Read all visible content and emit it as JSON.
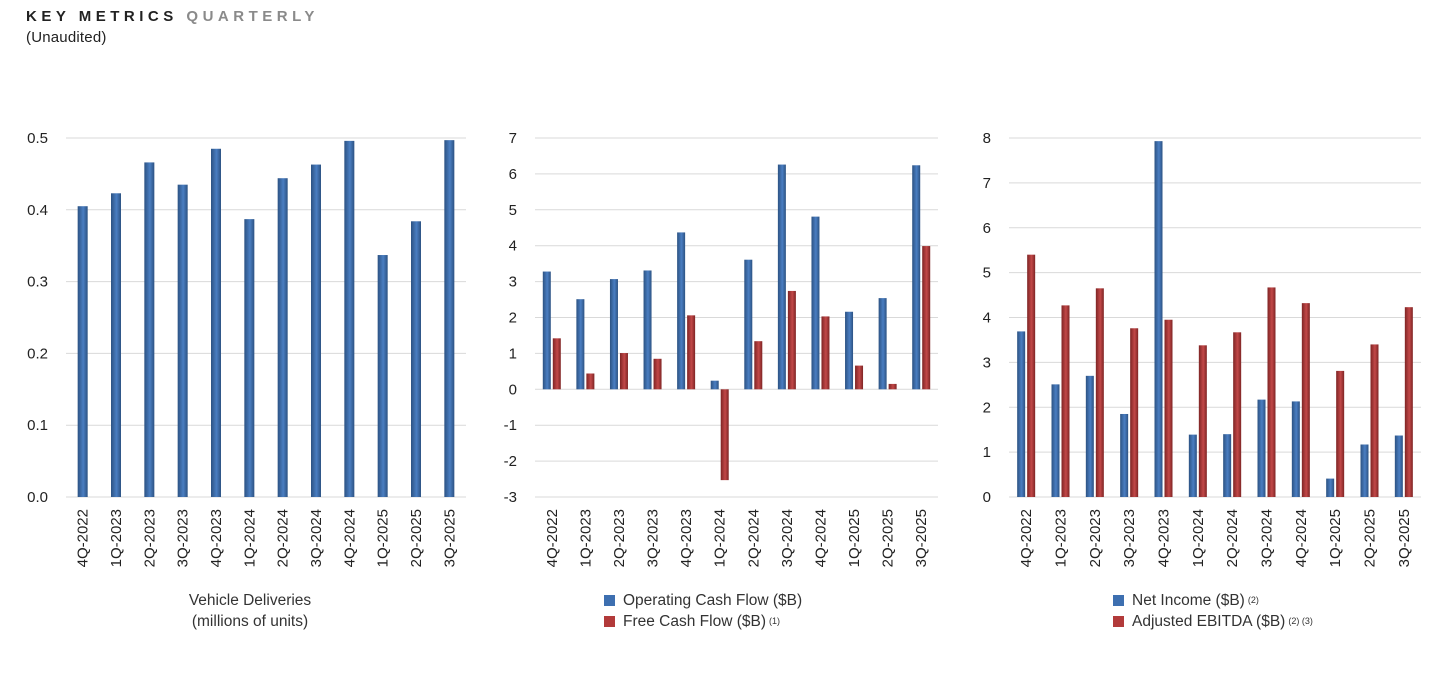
{
  "header": {
    "title_main": "KEY METRICS",
    "title_accent": "QUARTERLY",
    "subtitle": "(Unaudited)"
  },
  "colors": {
    "blue": "#3d6fb0",
    "blue_dark": "#2c5282",
    "red": "#b23a3a",
    "red_dark": "#7e2424",
    "grid": "#d9d9d9"
  },
  "legends": {
    "deliveries": {
      "line1": "Vehicle Deliveries",
      "line2": "(millions of units)"
    },
    "cash": {
      "operating": "Operating Cash Flow ($B)",
      "free": "Free Cash Flow ($B)",
      "free_note": "(1)"
    },
    "income": {
      "net": "Net Income ($B)",
      "net_note": "(2)",
      "ebitda": "Adjusted EBITDA ($B)",
      "ebitda_note": "(2) (3)"
    }
  },
  "chart_data": [
    {
      "id": "deliveries",
      "type": "bar",
      "title": "",
      "xlabel": "Vehicle Deliveries (millions of units)",
      "categories": [
        "4Q-2022",
        "1Q-2023",
        "2Q-2023",
        "3Q-2023",
        "4Q-2023",
        "1Q-2024",
        "2Q-2024",
        "3Q-2024",
        "4Q-2024",
        "1Q-2025",
        "2Q-2025",
        "3Q-2025"
      ],
      "ylim": [
        0,
        0.5
      ],
      "yticks": [
        0,
        0.1,
        0.2,
        0.3,
        0.4,
        0.5
      ],
      "ytick_labels": [
        "0.0",
        "0.1",
        "0.2",
        "0.3",
        "0.4",
        "0.5"
      ],
      "series": [
        {
          "name": "Vehicle Deliveries",
          "color": "blue",
          "values": [
            0.405,
            0.423,
            0.466,
            0.435,
            0.485,
            0.387,
            0.444,
            0.463,
            0.496,
            0.337,
            0.384,
            0.497
          ]
        }
      ]
    },
    {
      "id": "cash",
      "type": "bar",
      "title": "",
      "xlabel": "",
      "categories": [
        "4Q-2022",
        "1Q-2023",
        "2Q-2023",
        "3Q-2023",
        "4Q-2023",
        "1Q-2024",
        "2Q-2024",
        "3Q-2024",
        "4Q-2024",
        "1Q-2025",
        "2Q-2025",
        "3Q-2025"
      ],
      "ylim": [
        -3,
        7
      ],
      "yticks": [
        -3,
        -2,
        -1,
        0,
        1,
        2,
        3,
        4,
        5,
        6,
        7
      ],
      "ytick_labels": [
        "-3",
        "-2",
        "-1",
        "0",
        "1",
        "2",
        "3",
        "4",
        "5",
        "6",
        "7"
      ],
      "series": [
        {
          "name": "Operating Cash Flow ($B)",
          "color": "blue",
          "values": [
            3.28,
            2.51,
            3.07,
            3.31,
            4.37,
            0.24,
            3.61,
            6.26,
            4.81,
            2.16,
            2.54,
            6.24
          ]
        },
        {
          "name": "Free Cash Flow ($B)",
          "color": "red",
          "values": [
            1.42,
            0.44,
            1.01,
            0.85,
            2.06,
            -2.53,
            1.34,
            2.74,
            2.03,
            0.66,
            0.15,
            3.99
          ]
        }
      ]
    },
    {
      "id": "income",
      "type": "bar",
      "title": "",
      "xlabel": "",
      "categories": [
        "4Q-2022",
        "1Q-2023",
        "2Q-2023",
        "3Q-2023",
        "4Q-2023",
        "1Q-2024",
        "2Q-2024",
        "3Q-2024",
        "4Q-2024",
        "1Q-2025",
        "2Q-2025",
        "3Q-2025"
      ],
      "ylim": [
        0,
        8
      ],
      "yticks": [
        0,
        1,
        2,
        3,
        4,
        5,
        6,
        7,
        8
      ],
      "ytick_labels": [
        "0",
        "1",
        "2",
        "3",
        "4",
        "5",
        "6",
        "7",
        "8"
      ],
      "series": [
        {
          "name": "Net Income ($B)",
          "color": "blue",
          "values": [
            3.69,
            2.51,
            2.7,
            1.85,
            7.93,
            1.39,
            1.4,
            2.17,
            2.13,
            0.41,
            1.17,
            1.37
          ]
        },
        {
          "name": "Adjusted EBITDA ($B)",
          "color": "red",
          "values": [
            5.4,
            4.27,
            4.65,
            3.76,
            3.95,
            3.38,
            3.67,
            4.67,
            4.32,
            2.81,
            3.4,
            4.23
          ]
        }
      ]
    }
  ]
}
